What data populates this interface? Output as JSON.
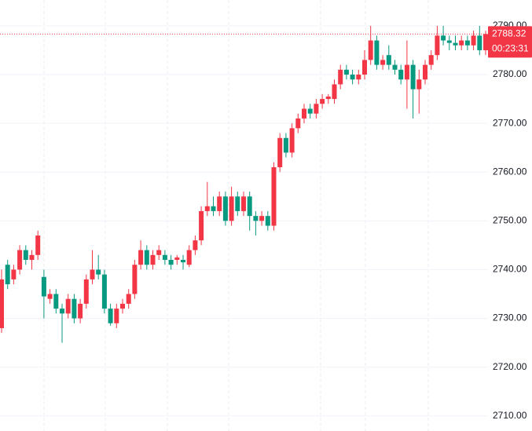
{
  "chart_data": {
    "type": "candlestick",
    "open": [
      2728,
      2741,
      2738,
      2740,
      2744,
      2742,
      2743,
      2738.5,
      2734,
      2735,
      2732,
      2731,
      2734,
      2730,
      2733,
      2738,
      2740,
      2739,
      2732,
      2729,
      2732,
      2733,
      2735,
      2741,
      2744,
      2741,
      2743,
      2743,
      2742,
      2742,
      2742,
      2741,
      2744,
      2746,
      2752,
      2753,
      2752,
      2755,
      2750,
      2755,
      2752,
      2755,
      2751,
      2750,
      2751,
      2749,
      2761,
      2767,
      2764,
      2769,
      2771,
      2773,
      2772,
      2774,
      2775,
      2775,
      2778,
      2781,
      2780,
      2779,
      2780,
      2783,
      2787,
      2782,
      2784,
      2782,
      2781,
      2779,
      2782,
      2777,
      2779,
      2782,
      2784,
      2788,
      2787,
      2786.5,
      2786,
      2787,
      2786,
      2788,
      2785
    ],
    "high": [
      2740,
      2742,
      2741,
      2745,
      2745,
      2744,
      2748,
      2740,
      2736,
      2736,
      2733,
      2735,
      2735,
      2734,
      2739,
      2744,
      2743,
      2740,
      2733,
      2733,
      2734,
      2736,
      2742,
      2746,
      2745,
      2744,
      2745,
      2744,
      2743,
      2743,
      2743,
      2745,
      2747,
      2753,
      2758,
      2755,
      2756,
      2756,
      2757,
      2756,
      2756,
      2756,
      2752,
      2752,
      2752,
      2762,
      2768,
      2768,
      2770,
      2772,
      2774,
      2774,
      2775,
      2776,
      2776,
      2779,
      2782,
      2782,
      2781,
      2781,
      2785,
      2790,
      2788,
      2784,
      2786,
      2783,
      2782,
      2787,
      2783,
      2781,
      2783,
      2785,
      2790,
      2790,
      2788,
      2788,
      2788,
      2788,
      2789,
      2790,
      2789
    ],
    "low": [
      2727,
      2736,
      2737,
      2739,
      2741,
      2740,
      2742,
      2730,
      2733,
      2731,
      2725,
      2730,
      2729,
      2729,
      2732,
      2737,
      2738,
      2731,
      2728.5,
      2728,
      2731,
      2732,
      2734,
      2740,
      2740,
      2740,
      2742,
      2741,
      2740,
      2741,
      2740,
      2740.5,
      2743,
      2745,
      2751,
      2751,
      2751,
      2749,
      2749,
      2751,
      2751,
      2748,
      2747,
      2749,
      2748,
      2748,
      2760,
      2763,
      2763,
      2768,
      2770,
      2771,
      2771,
      2773,
      2774,
      2774,
      2777,
      2779,
      2778,
      2778,
      2779,
      2782,
      2781,
      2781,
      2781,
      2780,
      2778,
      2773,
      2771,
      2772,
      2778,
      2781,
      2783,
      2786,
      2785,
      2785,
      2785,
      2785,
      2785,
      2784,
      2784
    ],
    "close": [
      2738,
      2737,
      2740,
      2744,
      2742,
      2743,
      2747,
      2734.5,
      2735,
      2732,
      2731,
      2734,
      2730,
      2733,
      2738,
      2740,
      2739,
      2732,
      2729,
      2732,
      2733,
      2735,
      2741,
      2744,
      2741,
      2743,
      2744,
      2742,
      2741,
      2742.5,
      2741.5,
      2744,
      2746,
      2752,
      2753,
      2752,
      2755,
      2750,
      2755,
      2752,
      2755,
      2751,
      2750,
      2751,
      2749,
      2761,
      2767,
      2764,
      2769,
      2771,
      2773,
      2772,
      2774,
      2775,
      2775.5,
      2778,
      2781,
      2780,
      2779,
      2780,
      2783,
      2787,
      2782,
      2783,
      2782,
      2781,
      2779,
      2782,
      2777,
      2779,
      2782,
      2784,
      2788,
      2787,
      2786.5,
      2786,
      2787,
      2786,
      2788,
      2785,
      2788.32
    ],
    "up_color": "#f23645",
    "down_color": "#089981",
    "ylim": [
      2706.9,
      2795.3
    ],
    "yticks": [
      {
        "value": 2710,
        "label": "2710.00"
      },
      {
        "value": 2720,
        "label": "2720.00"
      },
      {
        "value": 2730,
        "label": "2730.00"
      },
      {
        "value": 2740,
        "label": "2740.00"
      },
      {
        "value": 2750,
        "label": "2750.00"
      },
      {
        "value": 2760,
        "label": "2760.00"
      },
      {
        "value": 2770,
        "label": "2770.00"
      },
      {
        "value": 2780,
        "label": "2780.00"
      },
      {
        "value": 2790,
        "label": "2790.00"
      }
    ],
    "grid": true,
    "last_price": 2788.32,
    "countdown": "00:23:31"
  }
}
